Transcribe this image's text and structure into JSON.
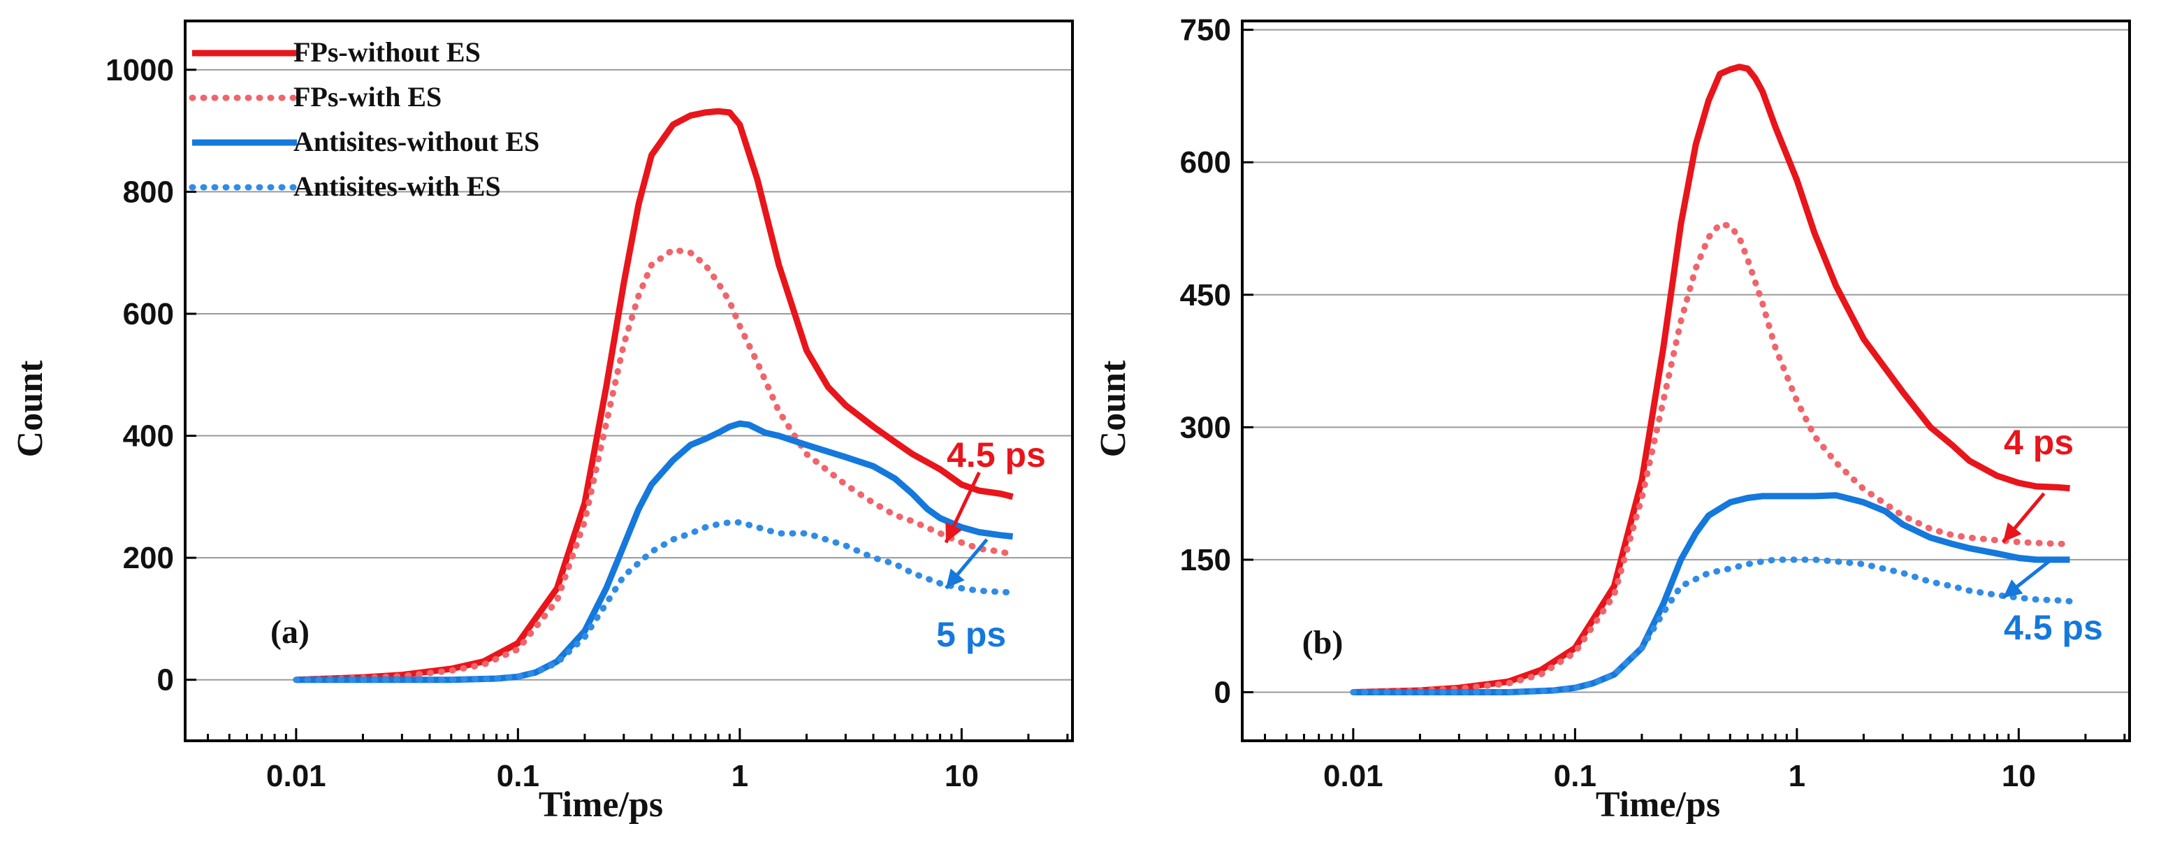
{
  "figure": {
    "colors": {
      "red": "#e8151b",
      "red_light": "#f0646a",
      "blue": "#1478dc",
      "blue_light": "#2f8ce6",
      "grid": "#9a9a9a",
      "axis": "#000000"
    }
  },
  "chart_data": [
    {
      "type": "line",
      "panel_label": "(a)",
      "xlabel": "Time/ps",
      "ylabel": "Count",
      "xscale": "log",
      "xlim": [
        0.00316,
        31.6
      ],
      "ylim": [
        -100,
        1080
      ],
      "xticks": [
        {
          "value": 0.01,
          "label": "0.01"
        },
        {
          "value": 0.1,
          "label": "0.1"
        },
        {
          "value": 1,
          "label": "1"
        },
        {
          "value": 10,
          "label": "10"
        }
      ],
      "yticks": [
        0,
        200,
        400,
        600,
        800,
        1000
      ],
      "grid": true,
      "legend_position": "top-left",
      "series": [
        {
          "name": "FPs-without ES",
          "color": "#e8151b",
          "dash": false,
          "x": [
            0.01,
            0.02,
            0.03,
            0.05,
            0.07,
            0.1,
            0.15,
            0.2,
            0.25,
            0.3,
            0.35,
            0.4,
            0.5,
            0.6,
            0.7,
            0.8,
            0.9,
            1.0,
            1.2,
            1.5,
            2.0,
            2.5,
            3,
            4,
            5,
            6,
            8,
            10,
            12,
            15,
            17
          ],
          "y": [
            0,
            4,
            8,
            18,
            30,
            60,
            150,
            290,
            480,
            650,
            780,
            860,
            910,
            925,
            930,
            932,
            930,
            910,
            820,
            680,
            540,
            480,
            450,
            415,
            390,
            370,
            345,
            320,
            310,
            305,
            300
          ]
        },
        {
          "name": "FPs-with ES",
          "color": "#f0646a",
          "dash": true,
          "x": [
            0.01,
            0.02,
            0.03,
            0.05,
            0.07,
            0.1,
            0.15,
            0.2,
            0.25,
            0.3,
            0.35,
            0.4,
            0.5,
            0.6,
            0.7,
            0.8,
            0.9,
            1.0,
            1.2,
            1.5,
            2,
            3,
            4,
            5,
            6,
            8,
            10,
            12,
            15,
            17
          ],
          "y": [
            0,
            3,
            6,
            15,
            25,
            50,
            130,
            260,
            420,
            550,
            630,
            680,
            705,
            700,
            680,
            650,
            620,
            580,
            520,
            440,
            370,
            320,
            290,
            270,
            260,
            240,
            225,
            215,
            210,
            205
          ]
        },
        {
          "name": "Antisites-without ES",
          "color": "#1478dc",
          "dash": false,
          "x": [
            0.01,
            0.05,
            0.08,
            0.1,
            0.12,
            0.15,
            0.2,
            0.25,
            0.3,
            0.35,
            0.4,
            0.5,
            0.6,
            0.7,
            0.8,
            0.9,
            1.0,
            1.1,
            1.3,
            1.5,
            2,
            3,
            4,
            5,
            6,
            7,
            8,
            10,
            12,
            15,
            17
          ],
          "y": [
            0,
            0,
            2,
            5,
            12,
            30,
            80,
            150,
            220,
            280,
            320,
            360,
            385,
            395,
            405,
            415,
            420,
            418,
            405,
            400,
            385,
            365,
            350,
            330,
            305,
            280,
            265,
            250,
            242,
            237,
            235
          ]
        },
        {
          "name": "Antisites-with ES",
          "color": "#2f8ce6",
          "dash": true,
          "x": [
            0.01,
            0.05,
            0.08,
            0.1,
            0.12,
            0.15,
            0.2,
            0.25,
            0.3,
            0.4,
            0.5,
            0.6,
            0.7,
            0.8,
            0.9,
            1.0,
            1.2,
            1.5,
            2,
            3,
            4,
            5,
            6,
            8,
            10,
            12,
            15,
            17
          ],
          "y": [
            0,
            0,
            2,
            5,
            12,
            28,
            70,
            125,
            170,
            210,
            230,
            240,
            250,
            255,
            258,
            258,
            250,
            240,
            240,
            220,
            200,
            190,
            175,
            158,
            150,
            146,
            144,
            143
          ]
        }
      ],
      "annotations": [
        {
          "text": "4.5 ps",
          "color": "#e8151b",
          "arrow_from": [
            12,
            340
          ],
          "arrow_to": [
            8.5,
            225
          ]
        },
        {
          "text": "5 ps",
          "color": "#1478dc",
          "arrow_from": [
            13,
            230
          ],
          "arrow_to": [
            8.5,
            150
          ]
        }
      ]
    },
    {
      "type": "line",
      "panel_label": "(b)",
      "xlabel": "Time/ps",
      "ylabel": "Count",
      "xscale": "log",
      "xlim": [
        0.00316,
        31.6
      ],
      "ylim": [
        -55,
        760
      ],
      "xticks": [
        {
          "value": 0.01,
          "label": "0.01"
        },
        {
          "value": 0.1,
          "label": "0.1"
        },
        {
          "value": 1,
          "label": "1"
        },
        {
          "value": 10,
          "label": "10"
        }
      ],
      "yticks": [
        0,
        150,
        300,
        450,
        600,
        750
      ],
      "grid": true,
      "legend_position": "none",
      "series": [
        {
          "name": "FPs-without ES",
          "color": "#e8151b",
          "dash": false,
          "x": [
            0.01,
            0.02,
            0.03,
            0.05,
            0.07,
            0.1,
            0.15,
            0.2,
            0.25,
            0.3,
            0.35,
            0.4,
            0.45,
            0.5,
            0.55,
            0.6,
            0.65,
            0.7,
            0.8,
            1.0,
            1.2,
            1.5,
            2,
            3,
            4,
            5,
            6,
            8,
            10,
            12,
            15,
            17
          ],
          "y": [
            0,
            2,
            5,
            12,
            25,
            50,
            120,
            240,
            390,
            530,
            620,
            670,
            700,
            705,
            708,
            706,
            695,
            680,
            640,
            580,
            520,
            460,
            400,
            340,
            300,
            280,
            262,
            245,
            237,
            233,
            232,
            231
          ]
        },
        {
          "name": "FPs-with ES",
          "color": "#f0646a",
          "dash": true,
          "x": [
            0.01,
            0.02,
            0.03,
            0.05,
            0.07,
            0.1,
            0.15,
            0.2,
            0.25,
            0.3,
            0.35,
            0.4,
            0.45,
            0.5,
            0.55,
            0.6,
            0.7,
            0.8,
            1.0,
            1.2,
            1.5,
            2,
            3,
            4,
            5,
            6,
            8,
            10,
            12,
            15,
            17
          ],
          "y": [
            0,
            2,
            4,
            10,
            20,
            45,
            110,
            220,
            330,
            420,
            480,
            515,
            530,
            528,
            515,
            490,
            440,
            390,
            330,
            290,
            260,
            230,
            200,
            185,
            178,
            175,
            172,
            170,
            169,
            168,
            168
          ]
        },
        {
          "name": "Antisites-without ES",
          "color": "#1478dc",
          "dash": false,
          "x": [
            0.01,
            0.05,
            0.08,
            0.1,
            0.12,
            0.15,
            0.2,
            0.25,
            0.3,
            0.35,
            0.4,
            0.5,
            0.6,
            0.7,
            0.8,
            1.0,
            1.2,
            1.5,
            2,
            2.5,
            3,
            4,
            5,
            6,
            8,
            10,
            12,
            15,
            17
          ],
          "y": [
            0,
            0,
            2,
            5,
            10,
            20,
            50,
            100,
            150,
            180,
            200,
            215,
            220,
            222,
            222,
            222,
            222,
            223,
            215,
            205,
            190,
            175,
            168,
            163,
            157,
            152,
            150,
            150,
            150
          ]
        },
        {
          "name": "Antisites-with ES",
          "color": "#2f8ce6",
          "dash": true,
          "x": [
            0.01,
            0.05,
            0.08,
            0.1,
            0.12,
            0.15,
            0.2,
            0.25,
            0.3,
            0.4,
            0.5,
            0.6,
            0.7,
            0.8,
            1.0,
            1.2,
            1.5,
            2,
            3,
            4,
            5,
            6,
            8,
            10,
            12,
            15,
            17
          ],
          "y": [
            0,
            0,
            2,
            5,
            10,
            20,
            50,
            90,
            120,
            135,
            140,
            145,
            148,
            150,
            150,
            150,
            148,
            145,
            135,
            125,
            120,
            115,
            110,
            107,
            105,
            104,
            103
          ]
        }
      ],
      "annotations": [
        {
          "text": "4 ps",
          "color": "#e8151b",
          "arrow_from": [
            13,
            225
          ],
          "arrow_to": [
            8.5,
            170
          ]
        },
        {
          "text": "4.5 ps",
          "color": "#1478dc",
          "arrow_from": [
            14,
            150
          ],
          "arrow_to": [
            8.5,
            107
          ]
        }
      ]
    }
  ]
}
